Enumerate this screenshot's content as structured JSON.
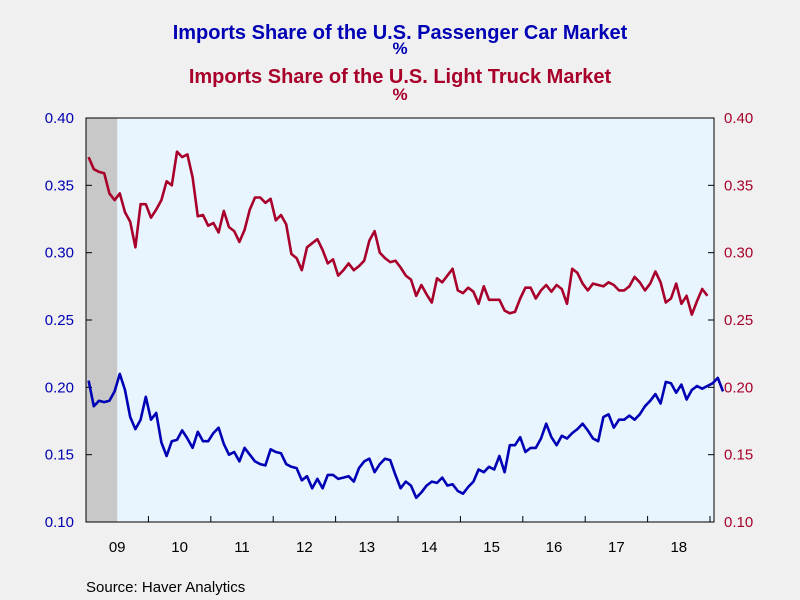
{
  "source_text": "Source:  Haver Analytics",
  "colors": {
    "car": "#0000b4",
    "truck": "#a8002a",
    "plot_bg": "#e8f4fe",
    "shade": "#c8c8c8"
  },
  "chart_data": {
    "type": "line",
    "title": "Imports Share of the U.S. Passenger Car Market",
    "title_unit": "%",
    "title2": "Imports Share of the U.S. Light Truck Market",
    "title2_unit": "%",
    "x_start": "2009-01",
    "x_tick_labels": [
      "09",
      "10",
      "11",
      "12",
      "13",
      "14",
      "15",
      "16",
      "17",
      "18"
    ],
    "ylim": [
      0.1,
      0.4
    ],
    "y_ticks": [
      0.1,
      0.15,
      0.2,
      0.25,
      0.3,
      0.35,
      0.4
    ],
    "y_tick_labels": [
      "0.10",
      "0.15",
      "0.20",
      "0.25",
      "0.30",
      "0.35",
      "0.40"
    ],
    "y2_tick_labels": [
      "0.10",
      "0.15",
      "0.20",
      "0.25",
      "0.30",
      "0.35",
      "0.40"
    ],
    "recession_shading": [
      "2009-01",
      "2009-06"
    ],
    "grid": false,
    "series": [
      {
        "axis": "left",
        "values": [
          0.205,
          0.186,
          0.19,
          0.189,
          0.19,
          0.197,
          0.21,
          0.198,
          0.178,
          0.169,
          0.176,
          0.193,
          0.176,
          0.181,
          0.159,
          0.149,
          0.16,
          0.161,
          0.168,
          0.162,
          0.155,
          0.167,
          0.16,
          0.16,
          0.166,
          0.17,
          0.158,
          0.15,
          0.152,
          0.145,
          0.155,
          0.15,
          0.145,
          0.143,
          0.142,
          0.154,
          0.152,
          0.151,
          0.143,
          0.141,
          0.14,
          0.131,
          0.134,
          0.125,
          0.132,
          0.125,
          0.135,
          0.135,
          0.132,
          0.133,
          0.134,
          0.13,
          0.14,
          0.145,
          0.147,
          0.137,
          0.143,
          0.147,
          0.146,
          0.135,
          0.125,
          0.13,
          0.127,
          0.118,
          0.122,
          0.127,
          0.13,
          0.129,
          0.133,
          0.127,
          0.128,
          0.123,
          0.121,
          0.126,
          0.13,
          0.139,
          0.137,
          0.141,
          0.139,
          0.149,
          0.137,
          0.157,
          0.157,
          0.163,
          0.152,
          0.155,
          0.155,
          0.162,
          0.173,
          0.163,
          0.157,
          0.164,
          0.162,
          0.166,
          0.169,
          0.173,
          0.168,
          0.162,
          0.16,
          0.178,
          0.18,
          0.17,
          0.176,
          0.176,
          0.179,
          0.176,
          0.18,
          0.186,
          0.19,
          0.195,
          0.188,
          0.204,
          0.203,
          0.196,
          0.202,
          0.191,
          0.198,
          0.201,
          0.199,
          0.201,
          0.203,
          0.207,
          0.197
        ]
      },
      {
        "axis": "right",
        "values": [
          0.371,
          0.362,
          0.36,
          0.359,
          0.344,
          0.339,
          0.344,
          0.33,
          0.323,
          0.304,
          0.336,
          0.336,
          0.326,
          0.332,
          0.339,
          0.353,
          0.35,
          0.375,
          0.371,
          0.373,
          0.356,
          0.327,
          0.328,
          0.32,
          0.322,
          0.315,
          0.331,
          0.319,
          0.316,
          0.308,
          0.317,
          0.332,
          0.341,
          0.341,
          0.337,
          0.34,
          0.324,
          0.328,
          0.321,
          0.299,
          0.296,
          0.287,
          0.304,
          0.307,
          0.31,
          0.302,
          0.292,
          0.295,
          0.283,
          0.287,
          0.292,
          0.287,
          0.29,
          0.294,
          0.309,
          0.316,
          0.3,
          0.296,
          0.293,
          0.294,
          0.289,
          0.283,
          0.28,
          0.268,
          0.276,
          0.269,
          0.263,
          0.281,
          0.278,
          0.283,
          0.288,
          0.272,
          0.27,
          0.274,
          0.271,
          0.262,
          0.275,
          0.265,
          0.265,
          0.265,
          0.257,
          0.255,
          0.256,
          0.266,
          0.274,
          0.274,
          0.266,
          0.272,
          0.276,
          0.271,
          0.276,
          0.273,
          0.262,
          0.288,
          0.285,
          0.277,
          0.272,
          0.277,
          0.276,
          0.275,
          0.278,
          0.276,
          0.272,
          0.272,
          0.275,
          0.282,
          0.278,
          0.272,
          0.277,
          0.286,
          0.278,
          0.263,
          0.266,
          0.277,
          0.262,
          0.268,
          0.254,
          0.264,
          0.273,
          0.268
        ]
      }
    ]
  }
}
